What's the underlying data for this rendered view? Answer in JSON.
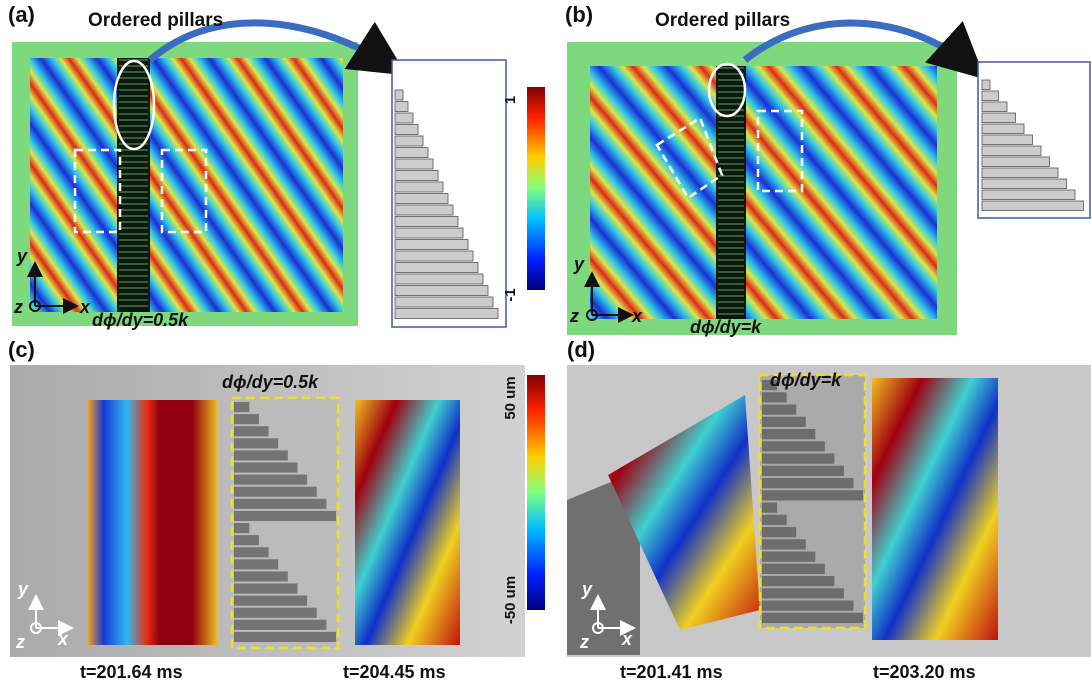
{
  "panels": [
    {
      "label": "(a)",
      "title": "Ordered pillars",
      "gradient": "dϕ/dy=0.5k",
      "axes": {
        "y": "y",
        "z": "z",
        "x": "x"
      }
    },
    {
      "label": "(b)",
      "title": "Ordered pillars",
      "gradient": "dϕ/dy=k",
      "axes": {
        "y": "y",
        "z": "z",
        "x": "x"
      }
    },
    {
      "label": "(c)",
      "gradient": "dϕ/dy=0.5k",
      "axes": {
        "y": "y",
        "z": "z",
        "x": "x"
      },
      "times": [
        "t=201.64 ms",
        "t=204.45 ms"
      ]
    },
    {
      "label": "(d)",
      "gradient": "dϕ/dy=k",
      "axes": {
        "y": "y",
        "z": "z",
        "x": "x"
      },
      "times": [
        "t=201.41 ms",
        "t=203.20 ms"
      ]
    }
  ],
  "colorbars": [
    {
      "max": "1",
      "min": "-1"
    },
    {
      "max": "50 um",
      "min": "-50 um"
    }
  ]
}
